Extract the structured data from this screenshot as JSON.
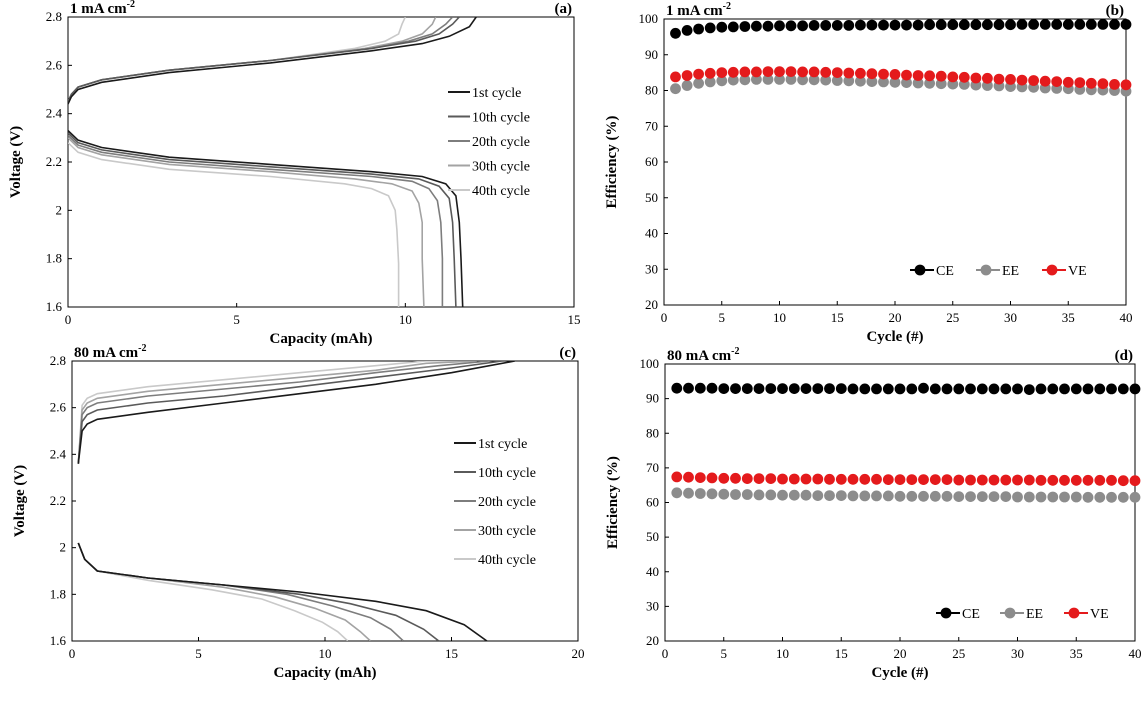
{
  "chart_data": [
    {
      "panel": "(a)",
      "type": "line",
      "title": "1 mA cm",
      "title_sup": "-2",
      "xlabel": "Capacity (mAh)",
      "ylabel": "Voltage (V)",
      "xlim": [
        0,
        15
      ],
      "ylim": [
        1.6,
        2.8
      ],
      "xticks": [
        "0",
        "5",
        "10",
        "15"
      ],
      "yticks": [
        "1.6",
        "1.8",
        "2",
        "2.2",
        "2.4",
        "2.6",
        "2.8"
      ],
      "grid": false,
      "legend": "right",
      "series": [
        {
          "name": "1st cycle",
          "color": "#1a1a1a",
          "charge": {
            "x": [
              0,
              0.1,
              0.3,
              1,
              3,
              6,
              9,
              10.5,
              11.3,
              11.9,
              12.1
            ],
            "y": [
              2.44,
              2.47,
              2.5,
              2.53,
              2.57,
              2.61,
              2.66,
              2.69,
              2.72,
              2.76,
              2.8
            ]
          },
          "discharge": {
            "x": [
              0,
              0.3,
              1,
              3,
              6,
              9,
              10.5,
              11.2,
              11.5,
              11.6,
              11.65,
              11.7
            ],
            "y": [
              2.33,
              2.29,
              2.26,
              2.22,
              2.19,
              2.16,
              2.14,
              2.11,
              2.06,
              1.95,
              1.8,
              1.6
            ]
          }
        },
        {
          "name": "10th cycle",
          "color": "#5a5a5a",
          "charge": {
            "x": [
              0,
              0.1,
              0.3,
              1,
              3,
              6,
              9,
              10.3,
              11.0,
              11.4,
              11.6
            ],
            "y": [
              2.45,
              2.48,
              2.51,
              2.54,
              2.58,
              2.62,
              2.67,
              2.7,
              2.73,
              2.77,
              2.8
            ]
          },
          "discharge": {
            "x": [
              0,
              0.3,
              1,
              3,
              6,
              9,
              10.4,
              11.0,
              11.3,
              11.4,
              11.45,
              11.5
            ],
            "y": [
              2.32,
              2.28,
              2.25,
              2.21,
              2.18,
              2.15,
              2.13,
              2.1,
              2.05,
              1.95,
              1.8,
              1.6
            ]
          }
        },
        {
          "name": "20th cycle",
          "color": "#7d7d7d",
          "charge": {
            "x": [
              0,
              0.1,
              0.3,
              1,
              3,
              6,
              9,
              10.1,
              10.8,
              11.2,
              11.4
            ],
            "y": [
              2.45,
              2.48,
              2.51,
              2.54,
              2.58,
              2.62,
              2.67,
              2.7,
              2.73,
              2.77,
              2.8
            ]
          },
          "discharge": {
            "x": [
              0,
              0.3,
              1,
              3,
              6,
              9,
              10.2,
              10.7,
              10.95,
              11.05,
              11.1,
              11.1
            ],
            "y": [
              2.31,
              2.27,
              2.24,
              2.2,
              2.17,
              2.14,
              2.12,
              2.09,
              2.04,
              1.95,
              1.8,
              1.6
            ]
          }
        },
        {
          "name": "30th cycle",
          "color": "#a3a3a3",
          "charge": {
            "x": [
              0,
              0.1,
              0.3,
              1,
              3,
              6,
              8.8,
              9.9,
              10.5,
              10.8,
              10.9
            ],
            "y": [
              2.45,
              2.48,
              2.51,
              2.54,
              2.58,
              2.62,
              2.67,
              2.7,
              2.73,
              2.77,
              2.8
            ]
          },
          "discharge": {
            "x": [
              0,
              0.3,
              1,
              3,
              6,
              8.5,
              9.6,
              10.2,
              10.4,
              10.5,
              10.5,
              10.55
            ],
            "y": [
              2.3,
              2.26,
              2.23,
              2.19,
              2.16,
              2.13,
              2.11,
              2.08,
              2.03,
              1.95,
              1.8,
              1.6
            ]
          }
        },
        {
          "name": "40th cycle",
          "color": "#c9c9c9",
          "charge": {
            "x": [
              0,
              0.1,
              0.3,
              1,
              3,
              6,
              8.5,
              9.4,
              9.8,
              9.9,
              10.0
            ],
            "y": [
              2.45,
              2.48,
              2.51,
              2.54,
              2.58,
              2.62,
              2.67,
              2.7,
              2.73,
              2.77,
              2.8
            ]
          },
          "discharge": {
            "x": [
              0,
              0.3,
              1,
              3,
              6,
              8.2,
              9.0,
              9.5,
              9.7,
              9.75,
              9.8,
              9.8
            ],
            "y": [
              2.28,
              2.24,
              2.21,
              2.17,
              2.14,
              2.11,
              2.09,
              2.06,
              2.0,
              1.92,
              1.78,
              1.6
            ]
          }
        }
      ]
    },
    {
      "panel": "(b)",
      "type": "scatter",
      "title": "1 mA cm",
      "title_sup": "-2",
      "xlabel": "Cycle (#)",
      "ylabel": "Efficiency (%)",
      "xlim": [
        0,
        40
      ],
      "ylim": [
        20,
        100
      ],
      "xticks": [
        "0",
        "5",
        "10",
        "15",
        "20",
        "25",
        "30",
        "35",
        "40"
      ],
      "yticks": [
        "20",
        "30",
        "40",
        "50",
        "60",
        "70",
        "80",
        "90",
        "100"
      ],
      "grid": false,
      "legend": "bottom-right",
      "series": [
        {
          "name": "CE",
          "color": "#000000",
          "values": [
            96.0,
            96.8,
            97.2,
            97.5,
            97.7,
            97.8,
            97.9,
            98.0,
            98.0,
            98.1,
            98.1,
            98.1,
            98.2,
            98.2,
            98.2,
            98.2,
            98.3,
            98.3,
            98.3,
            98.3,
            98.3,
            98.3,
            98.4,
            98.4,
            98.4,
            98.4,
            98.4,
            98.4,
            98.4,
            98.4,
            98.5,
            98.5,
            98.5,
            98.5,
            98.5,
            98.5,
            98.5,
            98.5,
            98.5,
            98.5
          ]
        },
        {
          "name": "EE",
          "color": "#8c8c8c",
          "values": [
            80.5,
            81.4,
            82.0,
            82.4,
            82.7,
            82.9,
            83.0,
            83.1,
            83.1,
            83.1,
            83.1,
            83.0,
            83.0,
            82.9,
            82.8,
            82.7,
            82.6,
            82.5,
            82.4,
            82.3,
            82.2,
            82.1,
            82.0,
            81.9,
            81.8,
            81.7,
            81.5,
            81.4,
            81.3,
            81.1,
            81.0,
            80.9,
            80.7,
            80.6,
            80.5,
            80.3,
            80.2,
            80.1,
            80.0,
            79.8
          ]
        },
        {
          "name": "VE",
          "color": "#e41a1c",
          "values": [
            83.8,
            84.2,
            84.6,
            84.8,
            85.0,
            85.1,
            85.2,
            85.2,
            85.3,
            85.3,
            85.3,
            85.2,
            85.2,
            85.1,
            85.0,
            84.9,
            84.8,
            84.7,
            84.6,
            84.5,
            84.3,
            84.2,
            84.1,
            84.0,
            83.8,
            83.7,
            83.5,
            83.4,
            83.2,
            83.1,
            82.9,
            82.8,
            82.6,
            82.5,
            82.3,
            82.2,
            82.0,
            81.9,
            81.7,
            81.6
          ]
        }
      ]
    },
    {
      "panel": "(c)",
      "type": "line",
      "title": "80 mA cm",
      "title_sup": "-2",
      "xlabel": "Capacity (mAh)",
      "ylabel": "Voltage (V)",
      "xlim": [
        0,
        20
      ],
      "ylim": [
        1.6,
        2.8
      ],
      "xticks": [
        "0",
        "5",
        "10",
        "15",
        "20"
      ],
      "yticks": [
        "1.6",
        "1.8",
        "2",
        "2.2",
        "2.4",
        "2.6",
        "2.8"
      ],
      "grid": false,
      "legend": "right",
      "series": [
        {
          "name": "1st cycle",
          "color": "#1a1a1a",
          "charge": {
            "x": [
              0.25,
              0.4,
              0.6,
              1,
              3,
              6,
              9,
              12,
              15,
              17.5
            ],
            "y": [
              2.36,
              2.5,
              2.53,
              2.55,
              2.58,
              2.62,
              2.66,
              2.7,
              2.75,
              2.8
            ]
          },
          "discharge": {
            "x": [
              0.25,
              0.5,
              1,
              3,
              6,
              9,
              12,
              14,
              15.5,
              16.4
            ],
            "y": [
              2.02,
              1.95,
              1.9,
              1.87,
              1.84,
              1.81,
              1.77,
              1.73,
              1.67,
              1.6
            ]
          }
        },
        {
          "name": "10th cycle",
          "color": "#5a5a5a",
          "charge": {
            "x": [
              0.25,
              0.4,
              0.6,
              1,
              3,
              6,
              9,
              12,
              15,
              17.0
            ],
            "y": [
              2.36,
              2.54,
              2.57,
              2.59,
              2.62,
              2.65,
              2.69,
              2.73,
              2.77,
              2.8
            ]
          },
          "discharge": {
            "x": [
              0.25,
              0.5,
              1,
              3,
              6,
              9,
              11,
              12.8,
              13.9,
              14.5
            ],
            "y": [
              2.02,
              1.95,
              1.9,
              1.87,
              1.84,
              1.8,
              1.76,
              1.71,
              1.65,
              1.6
            ]
          }
        },
        {
          "name": "20th cycle",
          "color": "#7d7d7d",
          "charge": {
            "x": [
              0.25,
              0.4,
              0.6,
              1,
              3,
              6,
              9,
              12,
              14.5,
              16.5
            ],
            "y": [
              2.36,
              2.57,
              2.6,
              2.62,
              2.65,
              2.68,
              2.71,
              2.75,
              2.78,
              2.8
            ]
          },
          "discharge": {
            "x": [
              0.25,
              0.5,
              1,
              3,
              6,
              8.5,
              10.3,
              11.8,
              12.6,
              13.1
            ],
            "y": [
              2.02,
              1.95,
              1.9,
              1.87,
              1.84,
              1.8,
              1.75,
              1.7,
              1.65,
              1.6
            ]
          }
        },
        {
          "name": "30th cycle",
          "color": "#a3a3a3",
          "charge": {
            "x": [
              0.25,
              0.4,
              0.6,
              1,
              3,
              6,
              9,
              12,
              14,
              16.0
            ],
            "y": [
              2.36,
              2.59,
              2.62,
              2.64,
              2.67,
              2.7,
              2.73,
              2.76,
              2.79,
              2.8
            ]
          },
          "discharge": {
            "x": [
              0.25,
              0.5,
              1,
              3,
              6,
              8,
              9.6,
              10.8,
              11.4,
              11.8
            ],
            "y": [
              2.02,
              1.95,
              1.9,
              1.87,
              1.83,
              1.79,
              1.74,
              1.69,
              1.64,
              1.6
            ]
          }
        },
        {
          "name": "40th cycle",
          "color": "#c9c9c9",
          "charge": {
            "x": [
              0.25,
              0.4,
              0.6,
              1,
              3,
              6,
              9,
              12,
              14,
              15.5
            ],
            "y": [
              2.36,
              2.61,
              2.64,
              2.66,
              2.69,
              2.72,
              2.75,
              2.78,
              2.8,
              2.8
            ]
          },
          "discharge": {
            "x": [
              0.25,
              0.5,
              1,
              3,
              5.5,
              7.5,
              8.8,
              9.9,
              10.5,
              10.9
            ],
            "y": [
              2.02,
              1.95,
              1.9,
              1.86,
              1.82,
              1.78,
              1.73,
              1.68,
              1.64,
              1.6
            ]
          }
        }
      ]
    },
    {
      "panel": "(d)",
      "type": "scatter",
      "title": "80 mA cm",
      "title_sup": "-2",
      "xlabel": "Cycle (#)",
      "ylabel": "Efficiency (%)",
      "xlim": [
        0,
        40
      ],
      "ylim": [
        20,
        100
      ],
      "xticks": [
        "0",
        "5",
        "10",
        "15",
        "20",
        "25",
        "30",
        "35",
        "40"
      ],
      "yticks": [
        "20",
        "30",
        "40",
        "50",
        "60",
        "70",
        "80",
        "90",
        "100"
      ],
      "grid": false,
      "legend": "bottom-right",
      "series": [
        {
          "name": "CE",
          "color": "#000000",
          "values": [
            93.0,
            93.0,
            93.0,
            93.0,
            92.9,
            92.9,
            92.9,
            92.9,
            92.9,
            92.9,
            92.9,
            92.9,
            92.9,
            92.9,
            92.9,
            92.8,
            92.8,
            92.8,
            92.8,
            92.8,
            92.8,
            93.0,
            92.8,
            92.8,
            92.8,
            92.8,
            92.8,
            92.8,
            92.8,
            92.8,
            92.6,
            92.8,
            92.8,
            92.8,
            92.8,
            92.8,
            92.8,
            92.8,
            92.8,
            92.8
          ]
        },
        {
          "name": "EE",
          "color": "#8c8c8c",
          "values": [
            62.8,
            62.7,
            62.6,
            62.5,
            62.4,
            62.3,
            62.3,
            62.2,
            62.2,
            62.1,
            62.1,
            62.1,
            62.0,
            62.0,
            62.0,
            61.9,
            61.9,
            61.9,
            61.9,
            61.8,
            61.8,
            61.8,
            61.8,
            61.8,
            61.7,
            61.7,
            61.7,
            61.7,
            61.7,
            61.6,
            61.6,
            61.6,
            61.6,
            61.6,
            61.6,
            61.5,
            61.5,
            61.5,
            61.5,
            61.5
          ]
        },
        {
          "name": "VE",
          "color": "#e41a1c",
          "values": [
            67.4,
            67.3,
            67.2,
            67.1,
            67.0,
            67.0,
            66.9,
            66.9,
            66.9,
            66.8,
            66.8,
            66.8,
            66.8,
            66.7,
            66.7,
            66.7,
            66.7,
            66.7,
            66.6,
            66.6,
            66.6,
            66.6,
            66.6,
            66.6,
            66.5,
            66.5,
            66.5,
            66.5,
            66.5,
            66.5,
            66.5,
            66.4,
            66.4,
            66.4,
            66.4,
            66.4,
            66.4,
            66.4,
            66.3,
            66.3
          ]
        }
      ]
    }
  ]
}
